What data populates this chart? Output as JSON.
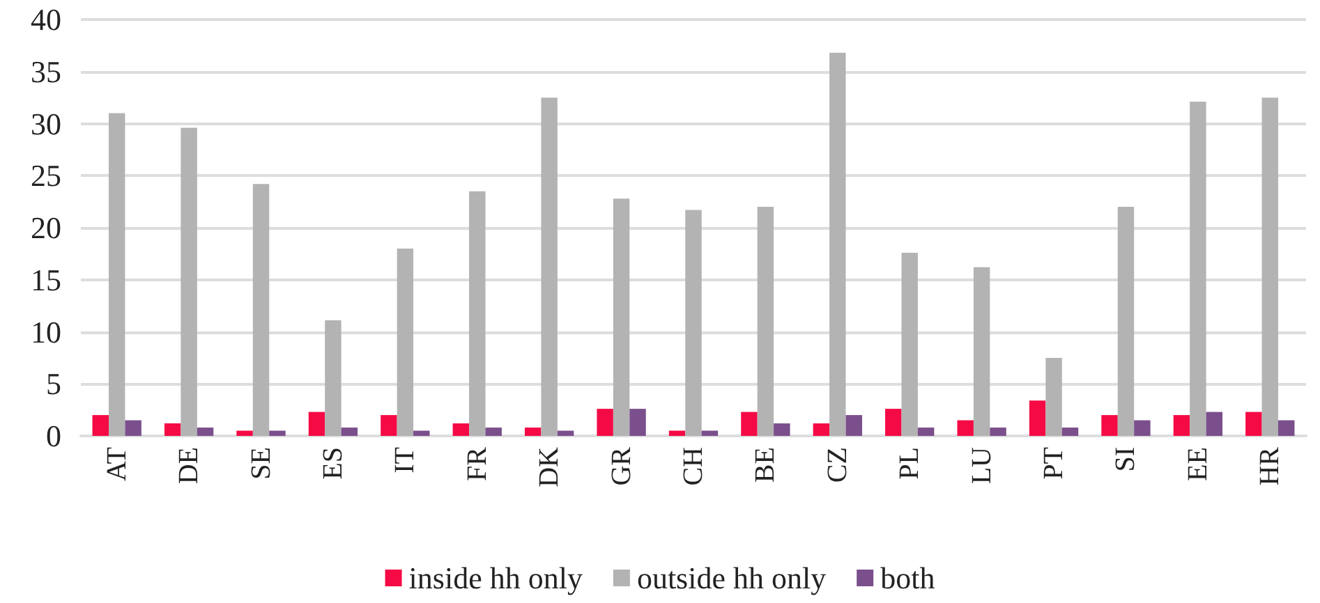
{
  "chart_data": {
    "type": "bar",
    "categories": [
      "AT",
      "DE",
      "SE",
      "ES",
      "IT",
      "FR",
      "DK",
      "GR",
      "CH",
      "BE",
      "CZ",
      "PL",
      "LU",
      "PT",
      "SI",
      "EE",
      "HR"
    ],
    "series": [
      {
        "name": "inside hh only",
        "color": "#f50a45",
        "values": [
          2.0,
          1.2,
          0.5,
          2.3,
          2.0,
          1.2,
          0.8,
          2.6,
          0.5,
          2.3,
          1.2,
          2.6,
          1.5,
          3.4,
          2.0,
          2.0,
          2.3
        ]
      },
      {
        "name": "outside hh only",
        "color": "#b3b3b3",
        "values": [
          31,
          29.6,
          24.2,
          11.1,
          18,
          23.5,
          32.5,
          22.8,
          21.7,
          22,
          36.8,
          17.6,
          16.2,
          7.5,
          22,
          32.1,
          32.5
        ]
      },
      {
        "name": "both",
        "color": "#7a4f8c",
        "values": [
          1.5,
          0.8,
          0.5,
          0.8,
          0.5,
          0.8,
          0.5,
          2.6,
          0.5,
          1.2,
          2.0,
          0.8,
          0.8,
          0.8,
          1.5,
          2.3,
          1.5
        ]
      }
    ],
    "ylim": [
      0,
      40
    ],
    "yticks": [
      0,
      5,
      10,
      15,
      20,
      25,
      30,
      35,
      40
    ],
    "grid": "y",
    "legend": "bottom"
  }
}
